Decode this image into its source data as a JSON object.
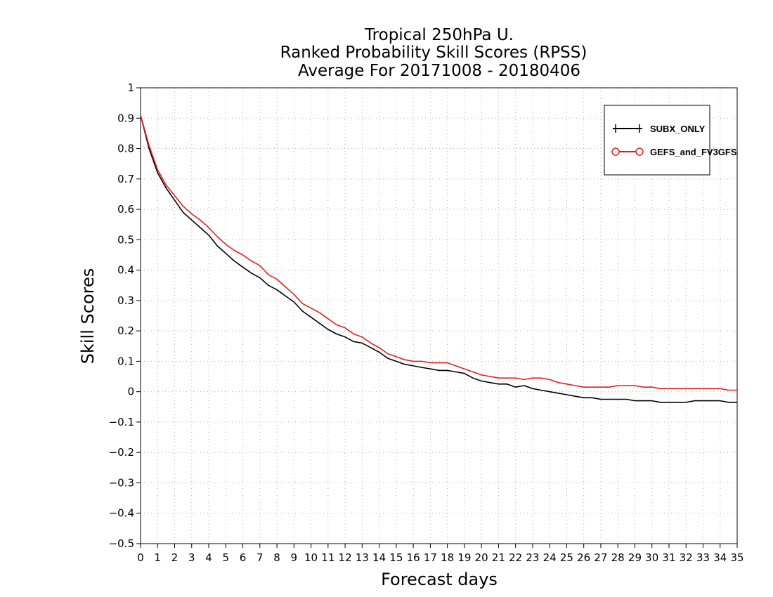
{
  "chart_data": {
    "type": "line",
    "title": [
      "Tropical 250hPa U.",
      "Ranked Probability Skill Scores (RPSS)",
      "Average For 20171008 - 20180406"
    ],
    "xlabel": "Forecast days",
    "ylabel": "Skill Scores",
    "xlim": [
      0,
      35
    ],
    "ylim": [
      -0.5,
      1
    ],
    "x_ticks": [
      0,
      1,
      2,
      3,
      4,
      5,
      6,
      7,
      8,
      9,
      10,
      11,
      12,
      13,
      14,
      15,
      16,
      17,
      18,
      19,
      20,
      21,
      22,
      23,
      24,
      25,
      26,
      27,
      28,
      29,
      30,
      31,
      32,
      33,
      34,
      35
    ],
    "y_ticks": [
      1,
      0.9,
      0.8,
      0.7,
      0.6,
      0.5,
      0.4,
      0.3,
      0.2,
      0.1,
      0,
      -0.1,
      -0.2,
      -0.3,
      -0.4,
      -0.5
    ],
    "y_tick_labels": [
      "1",
      "0.9",
      "0.8",
      "0.7",
      "0.6",
      "0.5",
      "0.4",
      "0.3",
      "0.2",
      "0.1",
      "0",
      "−0.1",
      "−0.2",
      "−0.3",
      "−0.4",
      "−0.5"
    ],
    "grid": true,
    "legend_position": "top-right",
    "x": [
      0,
      0.5,
      1,
      1.5,
      2,
      2.5,
      3,
      3.5,
      4,
      4.5,
      5,
      5.5,
      6,
      6.5,
      7,
      7.5,
      8,
      8.5,
      9,
      9.5,
      10,
      10.5,
      11,
      11.5,
      12,
      12.5,
      13,
      13.5,
      14,
      14.5,
      15,
      15.5,
      16,
      16.5,
      17,
      17.5,
      18,
      18.5,
      19,
      19.5,
      20,
      20.5,
      21,
      21.5,
      22,
      22.5,
      23,
      23.5,
      24,
      24.5,
      25,
      25.5,
      26,
      26.5,
      27,
      27.5,
      28,
      28.5,
      29,
      29.5,
      30,
      30.5,
      31,
      31.5,
      32,
      32.5,
      33,
      33.5,
      34,
      34.5,
      35
    ],
    "series": [
      {
        "name": "SUBX_ONLY",
        "color": "#000000",
        "marker": "plus",
        "values": [
          0.91,
          0.8,
          0.72,
          0.67,
          0.63,
          0.59,
          0.565,
          0.54,
          0.515,
          0.48,
          0.455,
          0.43,
          0.41,
          0.39,
          0.375,
          0.35,
          0.335,
          0.315,
          0.295,
          0.265,
          0.245,
          0.225,
          0.205,
          0.19,
          0.18,
          0.165,
          0.16,
          0.145,
          0.13,
          0.11,
          0.1,
          0.09,
          0.085,
          0.08,
          0.075,
          0.07,
          0.07,
          0.065,
          0.06,
          0.045,
          0.035,
          0.03,
          0.025,
          0.025,
          0.015,
          0.02,
          0.01,
          0.005,
          0.0,
          -0.005,
          -0.01,
          -0.015,
          -0.02,
          -0.02,
          -0.025,
          -0.025,
          -0.025,
          -0.025,
          -0.03,
          -0.03,
          -0.03,
          -0.035,
          -0.035,
          -0.035,
          -0.035,
          -0.03,
          -0.03,
          -0.03,
          -0.03,
          -0.035,
          -0.035
        ]
      },
      {
        "name": "GEFS_and_FV3GFS",
        "color": "#e02020",
        "marker": "circle",
        "values": [
          0.91,
          0.81,
          0.73,
          0.68,
          0.645,
          0.61,
          0.585,
          0.565,
          0.54,
          0.51,
          0.485,
          0.465,
          0.45,
          0.43,
          0.415,
          0.385,
          0.37,
          0.345,
          0.32,
          0.29,
          0.275,
          0.26,
          0.24,
          0.22,
          0.21,
          0.19,
          0.18,
          0.16,
          0.145,
          0.125,
          0.115,
          0.105,
          0.1,
          0.1,
          0.095,
          0.095,
          0.095,
          0.085,
          0.075,
          0.065,
          0.055,
          0.05,
          0.045,
          0.045,
          0.045,
          0.04,
          0.045,
          0.045,
          0.04,
          0.03,
          0.025,
          0.02,
          0.015,
          0.015,
          0.015,
          0.015,
          0.02,
          0.02,
          0.02,
          0.015,
          0.015,
          0.01,
          0.01,
          0.01,
          0.01,
          0.01,
          0.01,
          0.01,
          0.01,
          0.005,
          0.005
        ]
      }
    ],
    "legend": [
      {
        "label": "SUBX_ONLY",
        "color": "#000000",
        "marker": "plus"
      },
      {
        "label": "GEFS_and_FV3GFS",
        "color": "#e02020",
        "marker": "circle"
      }
    ]
  }
}
